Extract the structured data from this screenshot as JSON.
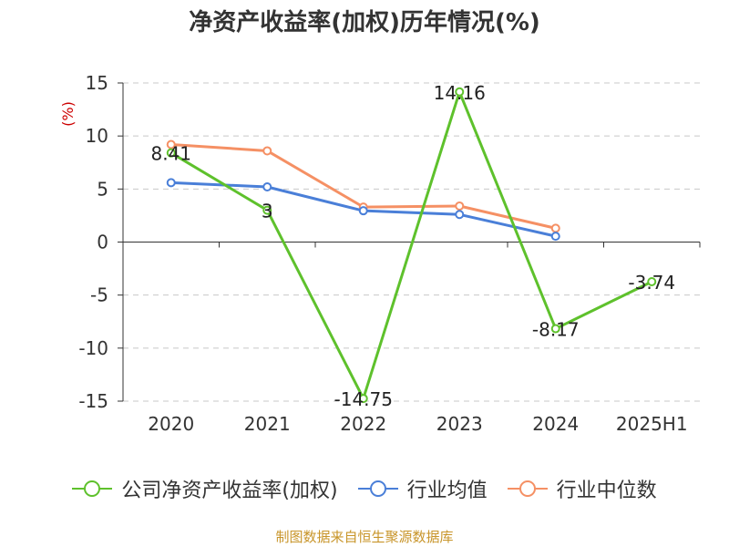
{
  "chart_data": {
    "type": "line",
    "title": "净资产收益率(加权)历年情况(%)",
    "ylabel": "(%)",
    "xlabel": "",
    "categories": [
      "2020",
      "2021",
      "2022",
      "2023",
      "2024",
      "2025H1"
    ],
    "ylim": [
      -15,
      15
    ],
    "yticks": [
      15,
      10,
      5,
      0,
      -5,
      -10,
      -15
    ],
    "grid": true,
    "legend_position": "bottom",
    "series": [
      {
        "name": "公司净资产收益率(加权)",
        "color": "#5ec12c",
        "values": [
          8.41,
          3,
          -14.75,
          14.16,
          -8.17,
          -3.74
        ],
        "data_labels": [
          "8.41",
          "3",
          "-14.75",
          "14.16",
          "-8.17",
          "-3.74"
        ]
      },
      {
        "name": "行业均值",
        "color": "#4a7fd8",
        "values": [
          5.6,
          5.2,
          2.95,
          2.6,
          0.55,
          null
        ]
      },
      {
        "name": "行业中位数",
        "color": "#f59064",
        "values": [
          9.2,
          8.6,
          3.3,
          3.4,
          1.3,
          null
        ]
      }
    ]
  },
  "source_text": "制图数据来自恒生聚源数据库"
}
